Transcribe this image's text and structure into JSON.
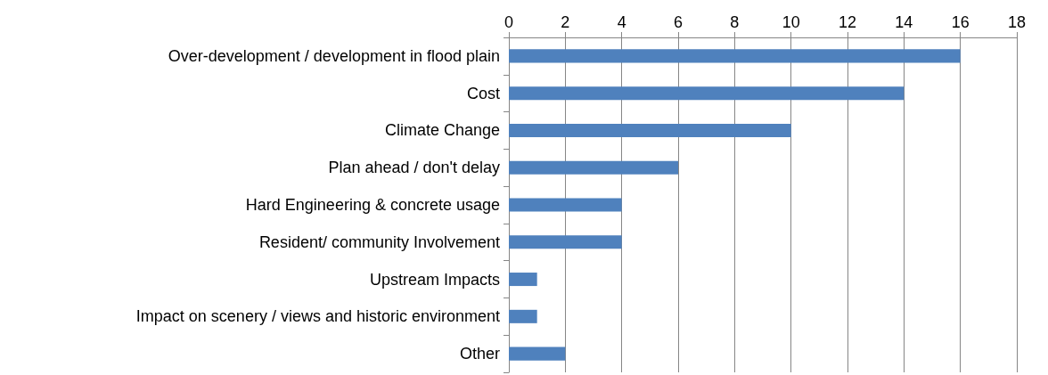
{
  "chart_data": {
    "type": "bar",
    "orientation": "horizontal",
    "categories": [
      "Over-development / development in flood plain",
      "Cost",
      "Climate Change",
      "Plan ahead / don't delay",
      "Hard Engineering & concrete usage",
      "Resident/ community Involvement",
      "Upstream Impacts",
      "Impact on scenery / views and historic environment",
      "Other"
    ],
    "values": [
      16,
      14,
      10,
      6,
      4,
      4,
      1,
      1,
      2
    ],
    "color": "#4f81bd",
    "xlim": [
      0,
      18
    ],
    "xticks": [
      0,
      2,
      4,
      6,
      8,
      10,
      12,
      14,
      16,
      18
    ],
    "grid": "x"
  }
}
